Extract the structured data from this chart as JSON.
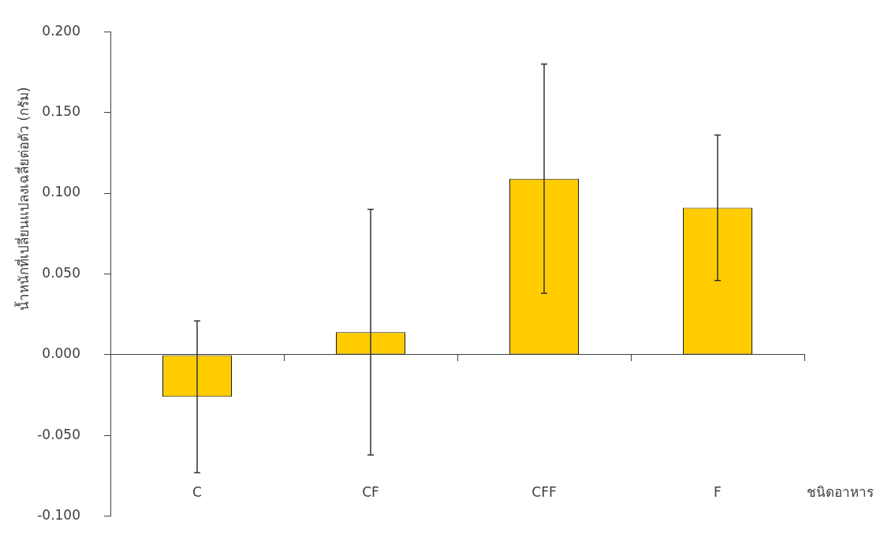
{
  "chart_data": {
    "type": "bar",
    "xlabel": "ชนิดอาหาร",
    "ylabel": "น้ำหนักที่เปลี่ยนแปลงเฉลี่ยต่อตัว (กรัม)",
    "categories": [
      "C",
      "CF",
      "CFF",
      "F"
    ],
    "values": [
      -0.026,
      0.014,
      0.109,
      0.091
    ],
    "errors": [
      0.047,
      0.076,
      0.071,
      0.045
    ],
    "color": "#ffcc00",
    "ylim": [
      -0.1,
      0.2
    ],
    "yticks": [
      {
        "value": -0.1,
        "label": "-0.100"
      },
      {
        "value": -0.05,
        "label": "-0.050"
      },
      {
        "value": 0,
        "label": "0.000"
      },
      {
        "value": 0.05,
        "label": "0.050"
      },
      {
        "value": 0.1,
        "label": "0.100"
      },
      {
        "value": 0.15,
        "label": "0.150"
      },
      {
        "value": 0.2,
        "label": "0.200"
      }
    ]
  }
}
